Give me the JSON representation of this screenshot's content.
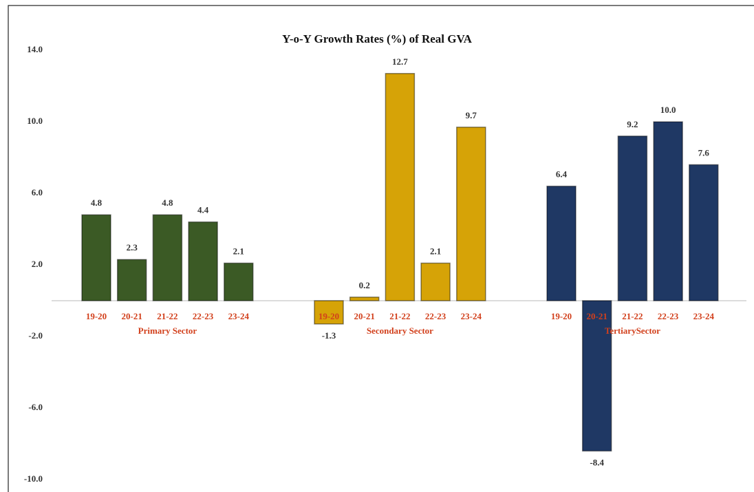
{
  "chart_data": {
    "type": "bar",
    "title": "Y-o-Y Growth Rates (%) of Real GVA",
    "categories": [
      "19-20",
      "20-21",
      "21-22",
      "22-23",
      "23-24"
    ],
    "series": [
      {
        "name": "Primary Sector",
        "color": "#3b5a25",
        "values": [
          4.8,
          2.3,
          4.8,
          4.4,
          2.1
        ],
        "value_labels": [
          "4.8",
          "2.3",
          "4.8",
          "4.4",
          "2.1"
        ]
      },
      {
        "name": "Secondary Sector",
        "color": "#d6a307",
        "values": [
          -1.3,
          0.2,
          12.7,
          2.1,
          9.7
        ],
        "value_labels": [
          "-1.3",
          "0.2",
          "12.7",
          "2.1",
          "9.7"
        ]
      },
      {
        "name": "TertiarySector",
        "color": "#1f3864",
        "values": [
          6.4,
          -8.4,
          9.2,
          10.0,
          7.6
        ],
        "value_labels": [
          "6.4",
          "-8.4",
          "9.2",
          "10.0",
          "7.6"
        ]
      }
    ],
    "ylim": [
      -10,
      14
    ],
    "yticks": [
      {
        "value": -10,
        "label": "-10.0"
      },
      {
        "value": -6,
        "label": "-6.0"
      },
      {
        "value": -2,
        "label": "-2.0"
      },
      {
        "value": 2,
        "label": "2.0"
      },
      {
        "value": 6,
        "label": "6.0"
      },
      {
        "value": 10,
        "label": "10.0"
      },
      {
        "value": 14,
        "label": "14.0"
      }
    ],
    "grid": false
  }
}
